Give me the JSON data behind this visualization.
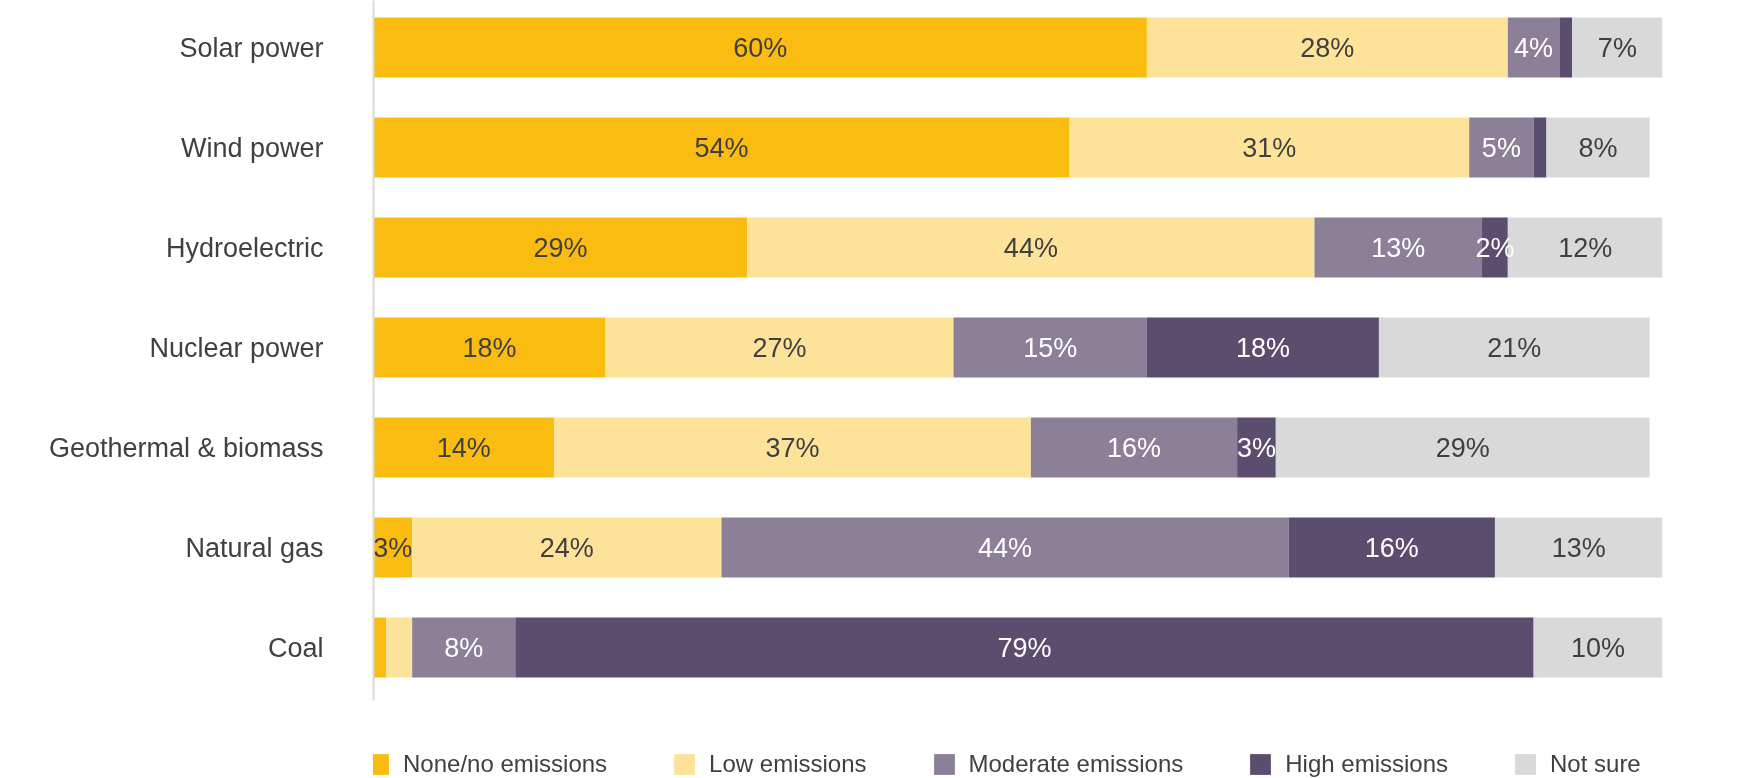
{
  "chart_data": {
    "type": "bar",
    "orientation": "horizontal",
    "stacked": true,
    "categories": [
      "Solar power",
      "Wind power",
      "Hydroelectric",
      "Nuclear power",
      "Geothermal & biomass",
      "Natural gas",
      "Coal"
    ],
    "xlim": [
      0,
      100
    ],
    "series": [
      {
        "name": "None/no emissions",
        "color": "#fbbc12",
        "values": [
          60,
          54,
          29,
          18,
          14,
          3,
          1
        ],
        "value_labels": [
          "60%",
          "54%",
          "29%",
          "18%",
          "14%",
          "3%",
          null
        ]
      },
      {
        "name": "Low emissions",
        "color": "#fde39a",
        "values": [
          28,
          31,
          44,
          27,
          37,
          24,
          2
        ],
        "value_labels": [
          "28%",
          "31%",
          "44%",
          "27%",
          "37%",
          "24%",
          null
        ]
      },
      {
        "name": "Moderate emissions",
        "color": "#8b8097",
        "values": [
          4,
          5,
          13,
          15,
          16,
          44,
          8
        ],
        "value_labels": [
          "4%",
          "5%",
          "13%",
          "15%",
          "16%",
          "44%",
          "8%"
        ]
      },
      {
        "name": "High emissions",
        "color": "#5b4d6e",
        "values": [
          1,
          1,
          2,
          18,
          3,
          16,
          79
        ],
        "value_labels": [
          null,
          null,
          "2%",
          "18%",
          "3%",
          "16%",
          "79%"
        ]
      },
      {
        "name": "Not sure",
        "color": "#d9d9d9",
        "values": [
          7,
          8,
          12,
          21,
          29,
          13,
          10
        ],
        "value_labels": [
          "7%",
          "8%",
          "12%",
          "21%",
          "29%",
          "13%",
          "10%"
        ]
      }
    ],
    "legend": "bottom"
  }
}
